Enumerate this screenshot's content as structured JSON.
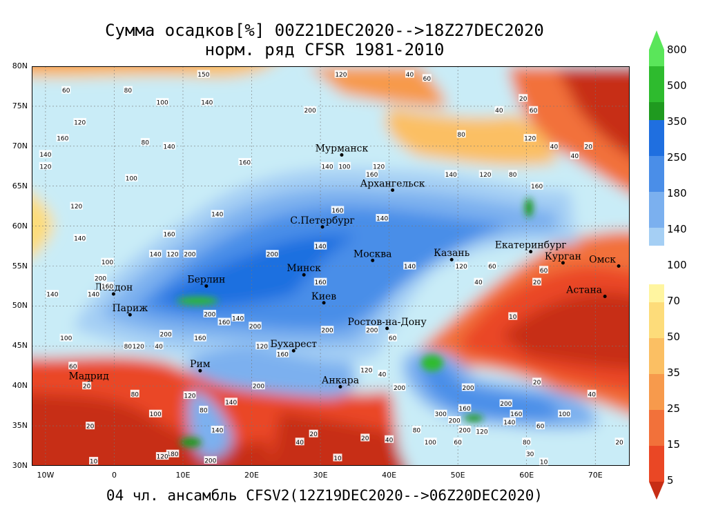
{
  "title": {
    "line1": "Сумма осадков[%] 00Z21DEC2020-->18Z27DEC2020",
    "line2": "норм. ряд CFSR 1981-2010"
  },
  "footer": "04 чл. ансамбль CFSV2(12Z19DEC2020-->06Z20DEC2020)",
  "axes": {
    "lat_labels": [
      "80N",
      "75N",
      "70N",
      "65N",
      "60N",
      "55N",
      "50N",
      "45N",
      "40N",
      "35N",
      "30N"
    ],
    "lon_labels": [
      "10W",
      "0",
      "10E",
      "20E",
      "30E",
      "40E",
      "50E",
      "60E",
      "70E"
    ],
    "lon_range": [
      -12,
      75
    ],
    "lat_range": [
      30,
      80
    ]
  },
  "cities": [
    {
      "name": "Мурманск",
      "lon": 33.1,
      "lat": 68.9
    },
    {
      "name": "Архангельск",
      "lon": 40.5,
      "lat": 64.5
    },
    {
      "name": "С.Петербург",
      "lon": 30.3,
      "lat": 59.9
    },
    {
      "name": "Москва",
      "lon": 37.6,
      "lat": 55.7
    },
    {
      "name": "Казань",
      "lon": 49.1,
      "lat": 55.8
    },
    {
      "name": "Екатеринбург",
      "lon": 60.6,
      "lat": 56.8
    },
    {
      "name": "Курган",
      "lon": 65.3,
      "lat": 55.4
    },
    {
      "name": "Омск",
      "lon": 73.4,
      "lat": 55.0
    },
    {
      "name": "Астана",
      "lon": 71.4,
      "lat": 51.2
    },
    {
      "name": "Минск",
      "lon": 27.6,
      "lat": 53.9
    },
    {
      "name": "Киев",
      "lon": 30.5,
      "lat": 50.4
    },
    {
      "name": "Берлин",
      "lon": 13.4,
      "lat": 52.5
    },
    {
      "name": "Лондон",
      "lon": -0.1,
      "lat": 51.5
    },
    {
      "name": "Париж",
      "lon": 2.3,
      "lat": 48.9
    },
    {
      "name": "Ростов-на-Дону",
      "lon": 39.7,
      "lat": 47.2
    },
    {
      "name": "Бухарест",
      "lon": 26.1,
      "lat": 44.4
    },
    {
      "name": "Мадрид",
      "lon": -3.7,
      "lat": 40.4
    },
    {
      "name": "Рим",
      "lon": 12.5,
      "lat": 41.9
    },
    {
      "name": "Анкара",
      "lon": 32.9,
      "lat": 39.9
    }
  ],
  "contour_labels": [
    {
      "t": "60",
      "lon": -7,
      "lat": 77
    },
    {
      "t": "80",
      "lon": 2,
      "lat": 77
    },
    {
      "t": "100",
      "lon": 7,
      "lat": 75.5
    },
    {
      "t": "140",
      "lon": 13.5,
      "lat": 75.5
    },
    {
      "t": "120",
      "lon": -5,
      "lat": 73
    },
    {
      "t": "200",
      "lon": 28.5,
      "lat": 74.5
    },
    {
      "t": "160",
      "lon": -7.5,
      "lat": 71
    },
    {
      "t": "140",
      "lon": -10,
      "lat": 69
    },
    {
      "t": "80",
      "lon": 4.5,
      "lat": 70.5
    },
    {
      "t": "140",
      "lon": 8,
      "lat": 70
    },
    {
      "t": "120",
      "lon": -10,
      "lat": 67.5
    },
    {
      "t": "100",
      "lon": 2.5,
      "lat": 66
    },
    {
      "t": "160",
      "lon": 19,
      "lat": 68
    },
    {
      "t": "140",
      "lon": 31,
      "lat": 67.5
    },
    {
      "t": "100",
      "lon": 33.5,
      "lat": 67.5
    },
    {
      "t": "120",
      "lon": 38.5,
      "lat": 67.5
    },
    {
      "t": "160",
      "lon": 37.5,
      "lat": 66.5
    },
    {
      "t": "140",
      "lon": 49,
      "lat": 66.5
    },
    {
      "t": "120",
      "lon": 54,
      "lat": 66.5
    },
    {
      "t": "80",
      "lon": 58,
      "lat": 66.5
    },
    {
      "t": "160",
      "lon": 61.5,
      "lat": 65
    },
    {
      "t": "120",
      "lon": -5.5,
      "lat": 62.5
    },
    {
      "t": "140",
      "lon": 15,
      "lat": 61.5
    },
    {
      "t": "160",
      "lon": 32.5,
      "lat": 62
    },
    {
      "t": "140",
      "lon": 39,
      "lat": 61
    },
    {
      "t": "140",
      "lon": -5,
      "lat": 58.5
    },
    {
      "t": "160",
      "lon": 8,
      "lat": 59
    },
    {
      "t": "140",
      "lon": 6,
      "lat": 56.5
    },
    {
      "t": "120",
      "lon": 8.5,
      "lat": 56.5
    },
    {
      "t": "200",
      "lon": 11,
      "lat": 56.5
    },
    {
      "t": "140",
      "lon": 30,
      "lat": 57.5
    },
    {
      "t": "100",
      "lon": -1,
      "lat": 55.5
    },
    {
      "t": "200",
      "lon": 23,
      "lat": 56.5
    },
    {
      "t": "140",
      "lon": 43,
      "lat": 55
    },
    {
      "t": "60",
      "lon": 55,
      "lat": 55
    },
    {
      "t": "120",
      "lon": 50.5,
      "lat": 55
    },
    {
      "t": "60",
      "lon": 62.5,
      "lat": 54.5
    },
    {
      "t": "40",
      "lon": 53,
      "lat": 53
    },
    {
      "t": "20",
      "lon": 61.5,
      "lat": 53
    },
    {
      "t": "200",
      "lon": -2,
      "lat": 53.5
    },
    {
      "t": "160",
      "lon": -1,
      "lat": 52.5
    },
    {
      "t": "160",
      "lon": 30,
      "lat": 53
    },
    {
      "t": "140",
      "lon": -9,
      "lat": 51.5
    },
    {
      "t": "140",
      "lon": -3,
      "lat": 51.5
    },
    {
      "t": "200",
      "lon": 13.9,
      "lat": 49
    },
    {
      "t": "160",
      "lon": 16,
      "lat": 48
    },
    {
      "t": "140",
      "lon": 18,
      "lat": 48.5
    },
    {
      "t": "200",
      "lon": 20.5,
      "lat": 47.5
    },
    {
      "t": "10",
      "lon": 58,
      "lat": 48.7
    },
    {
      "t": "200",
      "lon": 31,
      "lat": 47
    },
    {
      "t": "200",
      "lon": 37.5,
      "lat": 47
    },
    {
      "t": "100",
      "lon": -7,
      "lat": 46
    },
    {
      "t": "200",
      "lon": 7.5,
      "lat": 46.5
    },
    {
      "t": "160",
      "lon": 12.5,
      "lat": 46
    },
    {
      "t": "60",
      "lon": 40.5,
      "lat": 46
    },
    {
      "t": "80",
      "lon": 2,
      "lat": 45
    },
    {
      "t": "120",
      "lon": 3.5,
      "lat": 45
    },
    {
      "t": "120",
      "lon": 21.5,
      "lat": 45
    },
    {
      "t": "160",
      "lon": 24.5,
      "lat": 44
    },
    {
      "t": "40",
      "lon": 6.5,
      "lat": 45
    },
    {
      "t": "60",
      "lon": -6,
      "lat": 42.5
    },
    {
      "t": "120",
      "lon": 36.7,
      "lat": 42
    },
    {
      "t": "40",
      "lon": 39,
      "lat": 41.5
    },
    {
      "t": "200",
      "lon": 21,
      "lat": 40
    },
    {
      "t": "200",
      "lon": 41.5,
      "lat": 39.8
    },
    {
      "t": "20",
      "lon": -4,
      "lat": 40
    },
    {
      "t": "80",
      "lon": 3,
      "lat": 39
    },
    {
      "t": "120",
      "lon": 11,
      "lat": 38.8
    },
    {
      "t": "200",
      "lon": 51.5,
      "lat": 39.8
    },
    {
      "t": "20",
      "lon": 61.5,
      "lat": 40.5
    },
    {
      "t": "40",
      "lon": 69.5,
      "lat": 39
    },
    {
      "t": "80",
      "lon": 13,
      "lat": 37
    },
    {
      "t": "140",
      "lon": 17,
      "lat": 38
    },
    {
      "t": "160",
      "lon": 51,
      "lat": 37.2
    },
    {
      "t": "200",
      "lon": 57,
      "lat": 37.8
    },
    {
      "t": "20",
      "lon": -3.5,
      "lat": 35
    },
    {
      "t": "100",
      "lon": 6,
      "lat": 36.5
    },
    {
      "t": "140",
      "lon": 15,
      "lat": 34.5
    },
    {
      "t": "300",
      "lon": 47.5,
      "lat": 36.5
    },
    {
      "t": "200",
      "lon": 49.5,
      "lat": 35.7
    },
    {
      "t": "200",
      "lon": 51,
      "lat": 34.5
    },
    {
      "t": "120",
      "lon": 53.5,
      "lat": 34.3
    },
    {
      "t": "160",
      "lon": 58.5,
      "lat": 36.5
    },
    {
      "t": "100",
      "lon": 65.5,
      "lat": 36.5
    },
    {
      "t": "140",
      "lon": 57.5,
      "lat": 35.5
    },
    {
      "t": "60",
      "lon": 62,
      "lat": 35
    },
    {
      "t": "80",
      "lon": 44,
      "lat": 34.5
    },
    {
      "t": "20",
      "lon": 29,
      "lat": 34
    },
    {
      "t": "20",
      "lon": 36.5,
      "lat": 33.5
    },
    {
      "t": "40",
      "lon": 40,
      "lat": 33.3
    },
    {
      "t": "100",
      "lon": 46,
      "lat": 33
    },
    {
      "t": "60",
      "lon": 50,
      "lat": 33
    },
    {
      "t": "80",
      "lon": 60,
      "lat": 33
    },
    {
      "t": "20",
      "lon": 73.5,
      "lat": 33
    },
    {
      "t": "180",
      "lon": 8.5,
      "lat": 31.5
    },
    {
      "t": "120",
      "lon": 7,
      "lat": 31.2
    },
    {
      "t": "200",
      "lon": 14,
      "lat": 30.7
    },
    {
      "t": "10",
      "lon": -3,
      "lat": 30.6
    },
    {
      "t": "10",
      "lon": 32.5,
      "lat": 31
    },
    {
      "t": "40",
      "lon": 27,
      "lat": 33
    },
    {
      "t": "30",
      "lon": 60.5,
      "lat": 31.5
    },
    {
      "t": "10",
      "lon": 62.5,
      "lat": 30.5
    },
    {
      "t": "40",
      "lon": 43,
      "lat": 79
    },
    {
      "t": "60",
      "lon": 45.5,
      "lat": 78.5
    },
    {
      "t": "20",
      "lon": 59.5,
      "lat": 76
    },
    {
      "t": "40",
      "lon": 56,
      "lat": 74.5
    },
    {
      "t": "60",
      "lon": 61,
      "lat": 74.5
    },
    {
      "t": "80",
      "lon": 50.5,
      "lat": 71.5
    },
    {
      "t": "120",
      "lon": 60.5,
      "lat": 71
    },
    {
      "t": "40",
      "lon": 64,
      "lat": 70
    },
    {
      "t": "20",
      "lon": 69,
      "lat": 70
    },
    {
      "t": "40",
      "lon": 67,
      "lat": 68.8
    },
    {
      "t": "150",
      "lon": 13,
      "lat": 79
    },
    {
      "t": "120",
      "lon": 33,
      "lat": 79
    }
  ],
  "legend": {
    "labels": [
      "800",
      "500",
      "350",
      "250",
      "180",
      "140",
      "100",
      "70",
      "50",
      "35",
      "25",
      "15",
      "5"
    ],
    "colors": [
      "#5ae65a",
      "#2ebb2e",
      "#1f9a1f",
      "#1f6fe0",
      "#4a8ee8",
      "#7bb0ef",
      "#a5cff4",
      "#c9ecf7",
      "#fff5a0",
      "#fddc7a",
      "#fbbf63",
      "#f79a4c",
      "#f2713a",
      "#ea4725",
      "#c72d15"
    ]
  }
}
